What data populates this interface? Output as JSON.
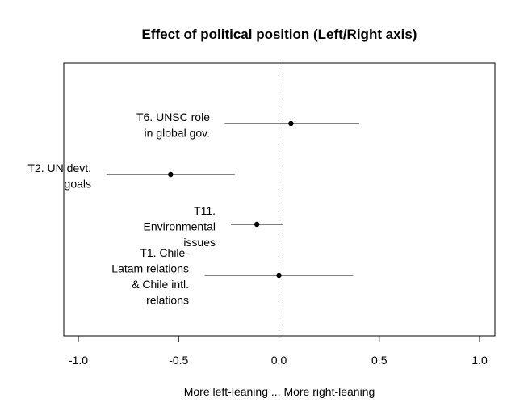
{
  "chart_data": {
    "type": "scatter",
    "title": "Effect of political position (Left/Right axis)",
    "xlabel": "More left-leaning ... More right-leaning",
    "ylabel": "",
    "xlim": [
      -1.0,
      1.0
    ],
    "x_ticks": [
      "-1.0",
      "-0.5",
      "0.0",
      "0.5",
      "1.0"
    ],
    "x_tick_values": [
      -1.0,
      -0.5,
      0.0,
      0.5,
      1.0
    ],
    "reference_line": {
      "x": 0.0,
      "style": "dashed"
    },
    "grid": false,
    "legend": "none",
    "series": [
      {
        "label_lines": [
          "T6. UNSC role",
          "in global gov."
        ],
        "estimate": 0.06,
        "ci": [
          -0.27,
          0.4
        ]
      },
      {
        "label_lines": [
          "T2. UN devt.",
          "goals"
        ],
        "estimate": -0.54,
        "ci": [
          -0.86,
          -0.22
        ]
      },
      {
        "label_lines": [
          "T11.",
          "Environmental",
          "issues"
        ],
        "estimate": -0.11,
        "ci": [
          -0.24,
          0.02
        ]
      },
      {
        "label_lines": [
          "T1. Chile-",
          "Latam relations",
          "& Chile intl.",
          "relations"
        ],
        "estimate": 0.0,
        "ci": [
          -0.37,
          0.37
        ]
      }
    ]
  }
}
